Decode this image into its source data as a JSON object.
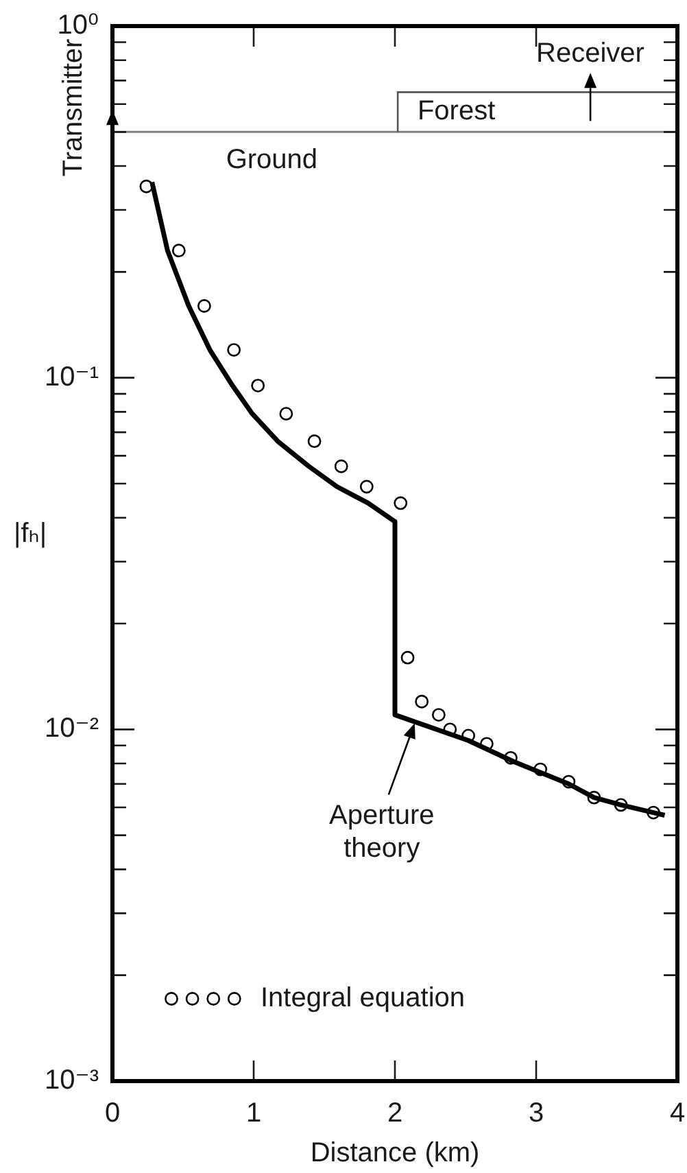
{
  "chart_data": {
    "type": "scatter",
    "xlabel": "Distance (km)",
    "ylabel": "|fₕ|",
    "series": [
      {
        "type": "line",
        "color": "#000000",
        "marker": "none",
        "x": [
          0.28,
          0.39,
          0.54,
          0.69,
          0.85,
          0.99,
          1.17,
          1.39,
          1.59,
          1.81,
          2.0,
          2.0,
          2.52,
          2.84,
          3.23,
          3.41,
          3.6,
          3.83,
          3.91
        ],
        "values": [
          0.36,
          0.23,
          0.16,
          0.12,
          0.095,
          0.079,
          0.066,
          0.056,
          0.049,
          0.044,
          0.039,
          0.011,
          0.0093,
          0.0081,
          0.007,
          0.0064,
          0.0061,
          0.0058,
          0.0057
        ]
      },
      {
        "name": "Integral equation",
        "color": "#000000",
        "x": [
          0.24,
          0.47,
          0.65,
          0.86,
          1.03,
          1.23,
          1.43,
          1.62,
          1.8,
          2.04,
          2.09,
          2.19,
          2.31,
          2.39,
          2.52,
          2.65,
          2.82,
          3.03,
          3.23,
          3.41,
          3.6,
          3.83
        ],
        "values": [
          0.35,
          0.23,
          0.16,
          0.12,
          0.095,
          0.079,
          0.066,
          0.056,
          0.049,
          0.044,
          0.016,
          0.012,
          0.011,
          0.01,
          0.0096,
          0.0091,
          0.0083,
          0.0077,
          0.0071,
          0.0064,
          0.0061,
          0.0058
        ]
      }
    ],
    "xlim": [
      0,
      4
    ],
    "xticks": [
      0,
      1,
      2,
      3,
      4
    ],
    "ylim": [
      0.001,
      1
    ],
    "yticks": [
      {
        "value": 0.001,
        "label": "10⁻³"
      },
      {
        "value": 0.002,
        "label": null
      },
      {
        "value": 0.003,
        "label": null
      },
      {
        "value": 0.004,
        "label": null
      },
      {
        "value": 0.005,
        "label": null
      },
      {
        "value": 0.006,
        "label": null
      },
      {
        "value": 0.007,
        "label": null
      },
      {
        "value": 0.008,
        "label": null
      },
      {
        "value": 0.009,
        "label": null
      },
      {
        "value": 0.01,
        "label": "10⁻²"
      },
      {
        "value": 0.02,
        "label": null
      },
      {
        "value": 0.03,
        "label": null
      },
      {
        "value": 0.04,
        "label": null
      },
      {
        "value": 0.05,
        "label": null
      },
      {
        "value": 0.06,
        "label": null
      },
      {
        "value": 0.07,
        "label": null
      },
      {
        "value": 0.08,
        "label": null
      },
      {
        "value": 0.09,
        "label": null
      },
      {
        "value": 0.1,
        "label": "10⁻¹"
      },
      {
        "value": 0.2,
        "label": null
      },
      {
        "value": 0.3,
        "label": null
      },
      {
        "value": 0.4,
        "label": null
      },
      {
        "value": 0.5,
        "label": null
      },
      {
        "value": 0.6,
        "label": null
      },
      {
        "value": 0.7,
        "label": null
      },
      {
        "value": 0.8,
        "label": null
      },
      {
        "value": 0.9,
        "label": null
      },
      {
        "value": 1,
        "label": "10⁰"
      }
    ],
    "log": "y",
    "marker": "circle",
    "legend": "bottom left",
    "ref_lines": [
      {
        "axis": "y",
        "value": 0.5,
        "label": "Ground",
        "color": "#808080"
      }
    ],
    "annotations": [
      {
        "text": "Aperture theory",
        "x": 2.14,
        "y": 0.0106
      },
      "Transmitter",
      "Forest",
      "Receiver"
    ]
  }
}
